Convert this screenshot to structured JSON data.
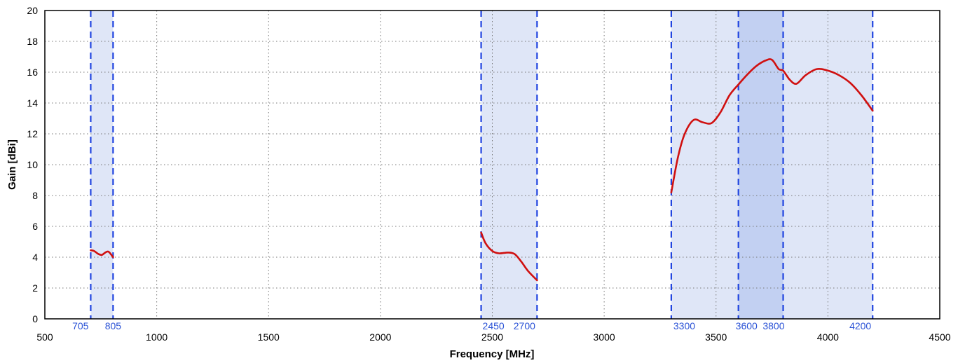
{
  "chart_data": {
    "type": "line",
    "xlabel": "Frequency [MHz]",
    "ylabel": "Gain [dBi]",
    "xlim": [
      500,
      4500
    ],
    "ylim": [
      0,
      20
    ],
    "x_ticks": [
      500,
      1000,
      1500,
      2000,
      2500,
      3000,
      3500,
      4000,
      4500
    ],
    "y_ticks": [
      0,
      2,
      4,
      6,
      8,
      10,
      12,
      14,
      16,
      18,
      20
    ],
    "grid": true,
    "colors": {
      "line": "#d01010",
      "band_fill": "#dfe6f7",
      "band_overlap_fill": "#c2d0f2",
      "band_edge": "#2044e0",
      "band_label": "#2a52d6"
    },
    "bands": [
      {
        "start": 705,
        "end": 805
      },
      {
        "start": 2450,
        "end": 2700
      },
      {
        "start": 3300,
        "end": 4200
      },
      {
        "start": 3600,
        "end": 3800
      }
    ],
    "band_labels": [
      "705",
      "805",
      "2450",
      "2700",
      "3300",
      "3600",
      "3800",
      "4200"
    ],
    "series": [
      {
        "segments": [
          {
            "x": [
              705,
              720,
              740,
              755,
              770,
              785,
              805
            ],
            "y": [
              4.45,
              4.4,
              4.2,
              4.15,
              4.3,
              4.35,
              4.0
            ]
          },
          {
            "x": [
              2450,
              2470,
              2500,
              2530,
              2570,
              2600,
              2630,
              2660,
              2700
            ],
            "y": [
              5.6,
              4.9,
              4.4,
              4.25,
              4.3,
              4.2,
              3.7,
              3.1,
              2.5
            ]
          },
          {
            "x": [
              3300,
              3330,
              3360,
              3400,
              3440,
              3480,
              3520,
              3560,
              3600,
              3640,
              3680,
              3720,
              3750,
              3780,
              3800,
              3830,
              3860,
              3900,
              3950,
              4000,
              4050,
              4100,
              4150,
              4200
            ],
            "y": [
              8.2,
              10.5,
              12.0,
              12.9,
              12.75,
              12.7,
              13.4,
              14.5,
              15.2,
              15.85,
              16.4,
              16.75,
              16.8,
              16.2,
              16.1,
              15.5,
              15.25,
              15.8,
              16.2,
              16.1,
              15.8,
              15.3,
              14.5,
              13.5
            ]
          }
        ]
      }
    ]
  }
}
